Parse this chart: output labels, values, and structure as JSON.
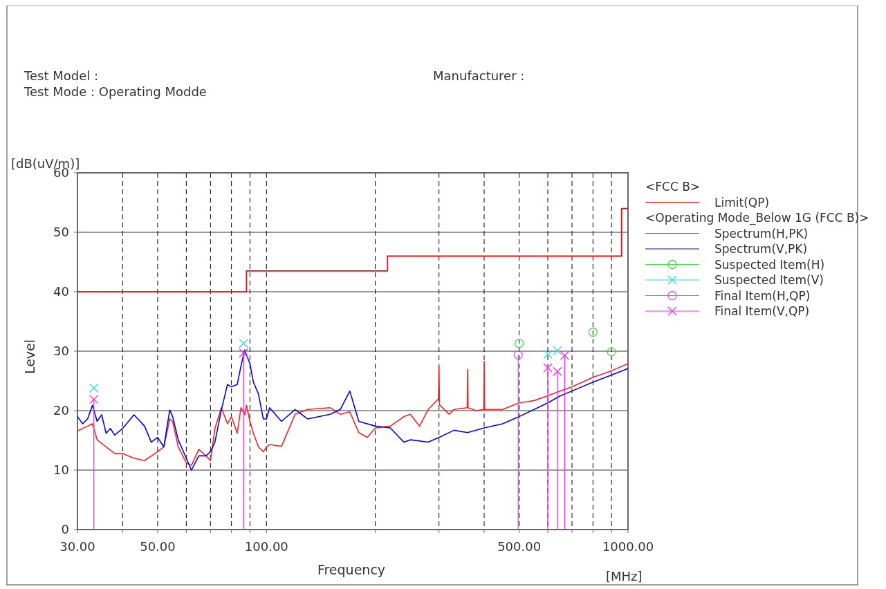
{
  "chart_data": {
    "type": "line",
    "xlabel": "Frequency",
    "ylabel": "Level",
    "legend_title": "<FCC B>",
    "annotations": [
      "Test Model :",
      "Test Mode : Operating Modde",
      "Manufacturer :",
      "<Operating Mode_Below 1G (FCC B)>",
      "[dB(uV/m)]",
      "[MHz]"
    ],
    "log": "x",
    "xlim": [
      30,
      1000
    ],
    "ylim": [
      0,
      60
    ],
    "xticks": [
      {
        "value": 30,
        "label": "30.00"
      },
      {
        "value": 40,
        "label": null
      },
      {
        "value": 50,
        "label": "50.00"
      },
      {
        "value": 60,
        "label": null
      },
      {
        "value": 70,
        "label": null
      },
      {
        "value": 80,
        "label": null
      },
      {
        "value": 90,
        "label": null
      },
      {
        "value": 100,
        "label": "100.00"
      },
      {
        "value": 200,
        "label": null
      },
      {
        "value": 300,
        "label": null
      },
      {
        "value": 400,
        "label": null
      },
      {
        "value": 500,
        "label": "500.00"
      },
      {
        "value": 600,
        "label": null
      },
      {
        "value": 700,
        "label": null
      },
      {
        "value": 800,
        "label": null
      },
      {
        "value": 900,
        "label": null
      },
      {
        "value": 1000,
        "label": "1000.00"
      }
    ],
    "yticks": [
      0,
      10,
      20,
      30,
      40,
      50,
      60
    ],
    "grid": true,
    "legend": "right",
    "series": [
      {
        "name": "Limit(QP)",
        "type": "step",
        "color": "#ff0000",
        "x": [
          30,
          88,
          216,
          960,
          1000
        ],
        "values": [
          40,
          43.5,
          46,
          54,
          54
        ]
      },
      {
        "name": "Spectrum(H,PK)",
        "color": "#ff2020",
        "x": [
          30,
          32,
          33,
          34,
          36,
          38,
          40,
          43,
          46,
          50,
          52,
          54,
          55,
          57,
          60,
          62,
          65,
          68,
          70,
          72,
          75,
          78,
          80,
          83,
          85,
          87,
          88,
          90,
          92,
          95,
          98,
          100,
          102,
          110,
          120,
          130,
          150,
          160,
          170,
          180,
          190,
          200,
          220,
          240,
          250,
          265,
          280,
          299,
          300,
          301,
          320,
          330,
          359,
          360,
          361,
          380,
          399,
          400,
          401,
          450,
          500,
          550,
          600,
          650,
          700,
          800,
          900,
          1000
        ],
        "values": [
          16.6,
          17.4,
          17.8,
          15.1,
          13.9,
          12.8,
          12.8,
          12,
          11.6,
          13.1,
          13.9,
          18.6,
          18.2,
          13.9,
          11.2,
          10.8,
          13.5,
          12.4,
          11.6,
          17,
          20.5,
          17.8,
          19,
          16.2,
          20.5,
          19.3,
          20.9,
          18.2,
          16.2,
          13.9,
          13.1,
          13.9,
          14.3,
          14,
          19.4,
          20.2,
          20.5,
          19.4,
          19.8,
          16.3,
          15.5,
          17.1,
          17.4,
          19,
          19.4,
          17.4,
          20.2,
          22,
          27.5,
          21,
          19.4,
          20.2,
          20.5,
          26.9,
          20.5,
          20,
          20.2,
          28.3,
          20.2,
          20.2,
          21.3,
          21.7,
          22.5,
          23.3,
          24,
          25.6,
          26.7,
          27.9
        ]
      },
      {
        "name": "Spectrum(V,PK)",
        "color": "#0000ff",
        "x": [
          30,
          31,
          32,
          33,
          34,
          35,
          36,
          37,
          38,
          40,
          43,
          46,
          48,
          50,
          52,
          54,
          55,
          57,
          60,
          62,
          65,
          68,
          70,
          72,
          75,
          78,
          80,
          83,
          85,
          87,
          88,
          90,
          92,
          95,
          98,
          100,
          102,
          110,
          120,
          130,
          150,
          160,
          170,
          180,
          200,
          220,
          240,
          250,
          280,
          300,
          330,
          360,
          400,
          450,
          500,
          550,
          600,
          650,
          700,
          800,
          900,
          1000
        ],
        "values": [
          19,
          17.8,
          18.6,
          20.9,
          18.2,
          19.3,
          16.2,
          17,
          15.9,
          17,
          19.3,
          17.4,
          14.7,
          15.5,
          13.9,
          20.1,
          19,
          15.1,
          12,
          10,
          12.4,
          12.4,
          13.1,
          14.7,
          20.1,
          24.4,
          24,
          24.4,
          27.5,
          30.2,
          29.4,
          27.9,
          24.8,
          22.8,
          18.6,
          18.6,
          20.5,
          18.2,
          20.2,
          18.6,
          19.4,
          20.2,
          23.3,
          18.2,
          17.4,
          17.1,
          14.7,
          15.1,
          14.7,
          15.5,
          16.7,
          16.3,
          17.1,
          17.8,
          19,
          20.2,
          21.3,
          22.5,
          23.3,
          24.8,
          26,
          27.1
        ]
      },
      {
        "name": "Suspected Item(H)",
        "type": "scatter",
        "marker": "circle",
        "color": "#44dd44",
        "x": [
          500,
          800,
          900
        ],
        "values": [
          31.3,
          33.2,
          29.9
        ]
      },
      {
        "name": "Suspected Item(V)",
        "type": "scatter",
        "marker": "cross",
        "color": "#22dddd",
        "x": [
          33.3,
          86.4,
          600,
          638
        ],
        "values": [
          23.8,
          31.3,
          29.5,
          30.1
        ]
      },
      {
        "name": "Final Item(H,QP)",
        "type": "lollipop",
        "marker": "circle",
        "color": "#ff44ff",
        "x": [
          497
        ],
        "values": [
          29.4
        ]
      },
      {
        "name": "Final Item(V,QP)",
        "type": "lollipop",
        "marker": "cross",
        "color": "#ff22ff",
        "x": [
          33.3,
          86.4,
          600,
          638,
          668
        ],
        "values": [
          21.9,
          29.7,
          27.2,
          26.6,
          29.3
        ]
      }
    ]
  }
}
